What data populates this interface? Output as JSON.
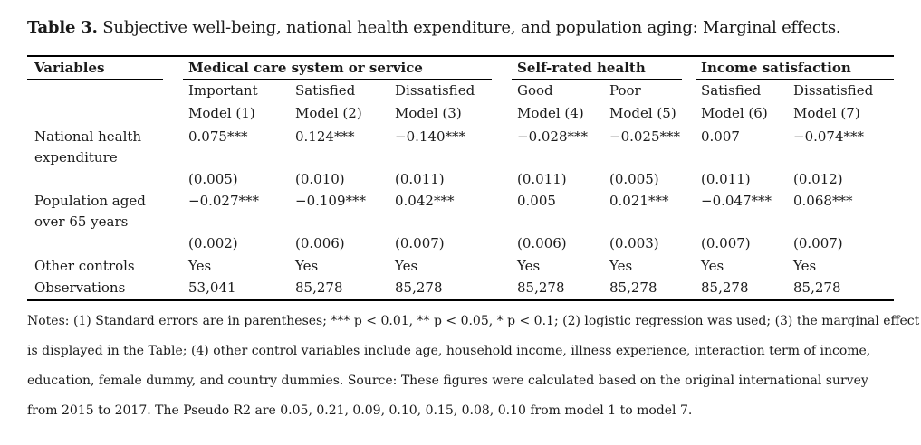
{
  "caption": {
    "label": "Table 3.",
    "text": " Subjective well-being, national health expenditure, and population aging: Marginal effects."
  },
  "header": {
    "variables": "Variables",
    "groups": [
      "Medical care system or service",
      "Self-rated health",
      "Income satisfaction"
    ],
    "subheads": [
      "Important",
      "Satisfied",
      "Dissatisfied",
      "Good",
      "Poor",
      "Satisfied",
      "Dissatisfied"
    ],
    "models": [
      "Model (1)",
      "Model (2)",
      "Model (3)",
      "Model (4)",
      "Model (5)",
      "Model (6)",
      "Model (7)"
    ]
  },
  "rows": [
    {
      "label_lines": [
        "National health",
        "expenditure"
      ],
      "coef": [
        "0.075***",
        "0.124***",
        "−0.140***",
        "−0.028***",
        "−0.025***",
        "0.007",
        "−0.074***"
      ],
      "se": [
        "(0.005)",
        "(0.010)",
        "(0.011)",
        "(0.011)",
        "(0.005)",
        "(0.011)",
        "(0.012)"
      ]
    },
    {
      "label_lines": [
        "Population aged",
        "over 65 years"
      ],
      "coef": [
        "−0.027***",
        "−0.109***",
        "0.042***",
        "0.005",
        "0.021***",
        "−0.047***",
        "0.068***"
      ],
      "se": [
        "(0.002)",
        "(0.006)",
        "(0.007)",
        "(0.006)",
        "(0.003)",
        "(0.007)",
        "(0.007)"
      ]
    }
  ],
  "controls": {
    "label": "Other controls",
    "values": [
      "Yes",
      "Yes",
      "Yes",
      "Yes",
      "Yes",
      "Yes",
      "Yes"
    ]
  },
  "observations": {
    "label": "Observations",
    "values": [
      "53,041",
      "85,278",
      "85,278",
      "85,278",
      "85,278",
      "85,278",
      "85,278"
    ]
  },
  "notes": [
    "Notes: (1) Standard errors are in parentheses; *** p < 0.01, ** p < 0.05, * p < 0.1; (2) logistic regression was used; (3) the marginal effect",
    "is displayed in the Table; (4) other control variables include age, household income, illness experience, interaction term of income,",
    "education, female dummy, and country dummies. Source: These figures were calculated based on the original international survey",
    "from 2015 to 2017. The Pseudo R2 are 0.05, 0.21, 0.09, 0.10, 0.15, 0.08, 0.10 from model 1 to model 7."
  ]
}
